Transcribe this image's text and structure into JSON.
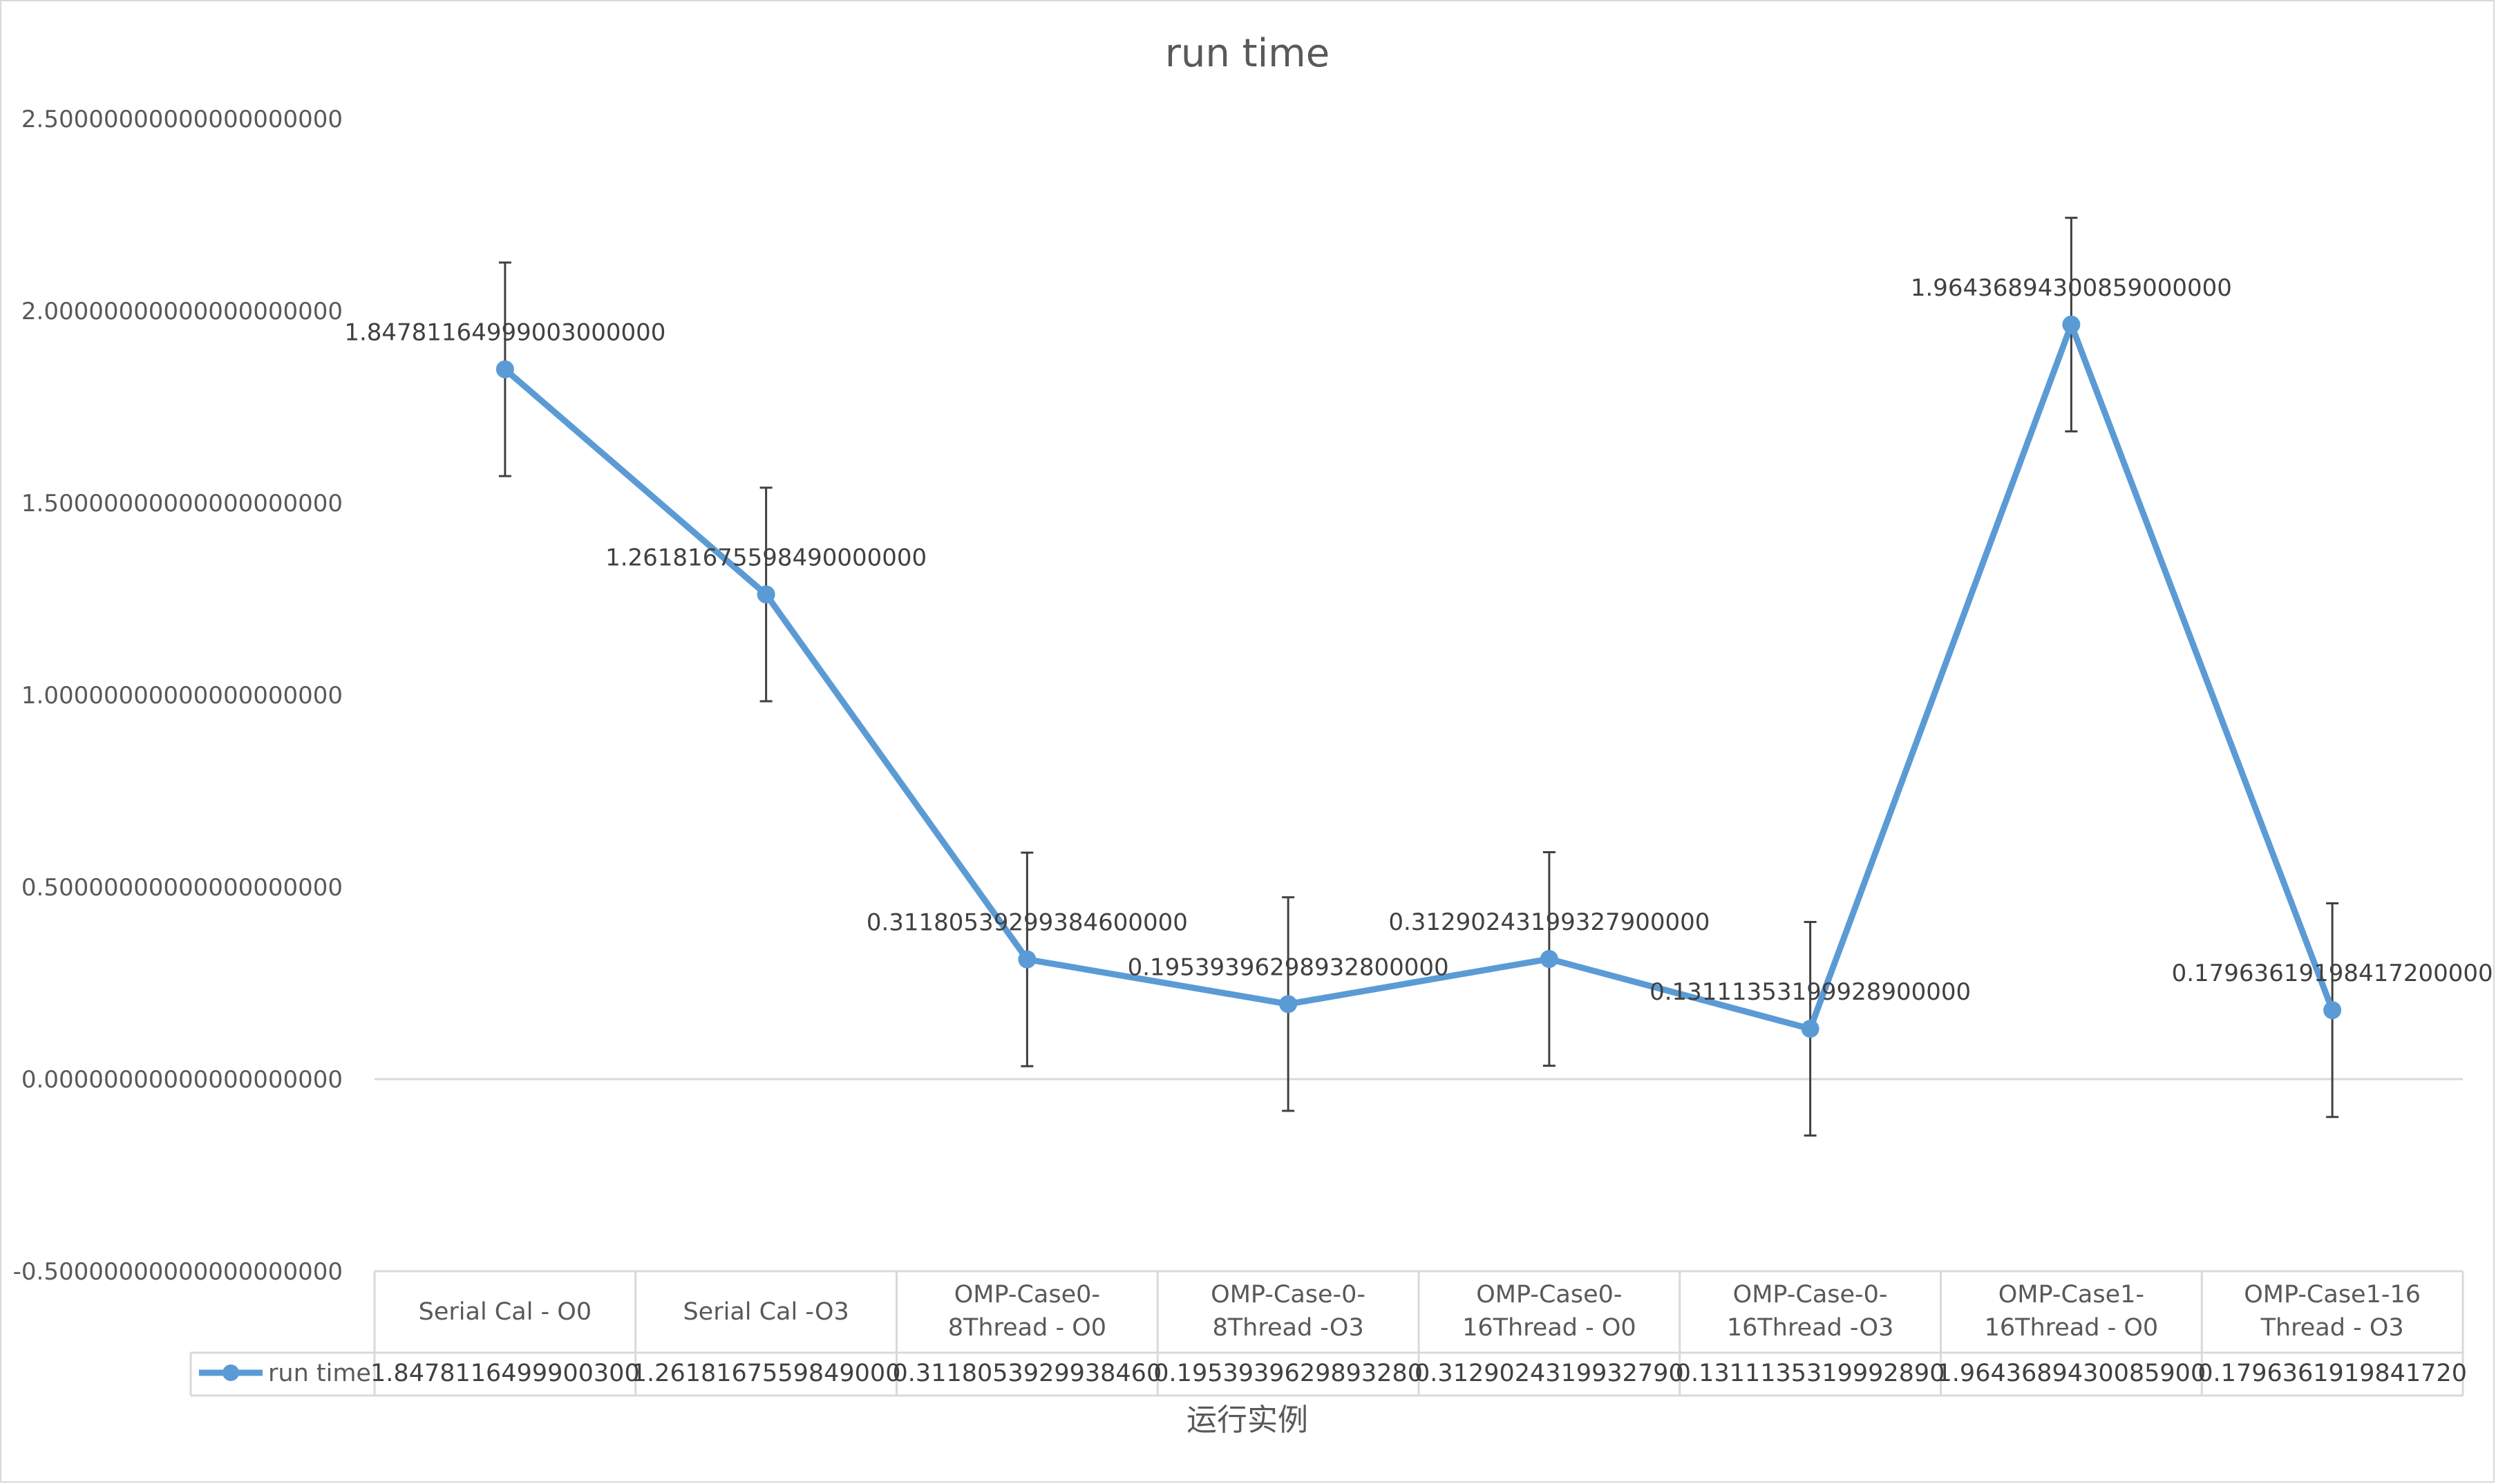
{
  "chart_data": {
    "type": "line",
    "title": "run time",
    "xlabel": "运行实例",
    "ylabel": "",
    "ylim": [
      -0.5,
      2.5
    ],
    "yticks": [
      "2.50000000000000000000",
      "2.00000000000000000000",
      "1.50000000000000000000",
      "1.00000000000000000000",
      "0.50000000000000000000",
      "0.00000000000000000000",
      "-0.50000000000000000000"
    ],
    "categories": [
      [
        "Serial Cal - O0"
      ],
      [
        "Serial Cal -O3"
      ],
      [
        "OMP-Case0-",
        "8Thread - O0"
      ],
      [
        "OMP-Case-0-",
        "8Thread -O3"
      ],
      [
        "OMP-Case0-",
        "16Thread - O0"
      ],
      [
        "OMP-Case-0-",
        "16Thread -O3"
      ],
      [
        "OMP-Case1-",
        "16Thread - O0"
      ],
      [
        "OMP-Case1-16",
        "Thread - O3"
      ]
    ],
    "series": [
      {
        "name": "run time",
        "color": "#5b9bd5",
        "values": [
          1.84781164999003,
          1.2618167559849,
          0.311805392993846,
          0.195393962989328,
          0.312902431993279,
          0.131113531999289,
          1.96436894300859,
          0.179636191984172
        ],
        "data_labels": [
          "1.84781164999003000000",
          "1.26181675598490000000",
          "0.31180539299384600000",
          "0.19539396298932800000",
          "0.31290243199327900000",
          "0.13111353199928900000",
          "1.96436894300859000000",
          "0.17963619198417200000"
        ],
        "table_values": [
          "1.8478116499900300",
          "1.2618167559849000",
          "0.3118053929938460",
          "0.1953939629893280",
          "0.3129024319932790",
          "0.1311135319992890",
          "1.9643689430085900",
          "0.1796361919841720"
        ],
        "error_plus_minus": 0.278
      }
    ],
    "grid": "horizontal zero line only",
    "legend": "data table"
  }
}
